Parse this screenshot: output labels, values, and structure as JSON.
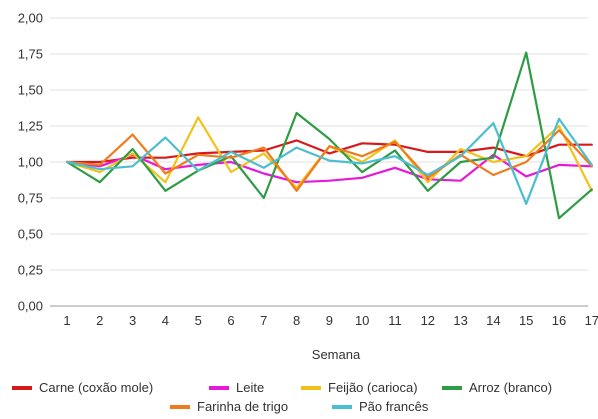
{
  "chart_data": {
    "type": "line",
    "title": "",
    "xlabel": "Semana",
    "ylabel": "",
    "x": [
      1,
      2,
      3,
      4,
      5,
      6,
      7,
      8,
      9,
      10,
      11,
      12,
      13,
      14,
      15,
      16,
      17
    ],
    "ylim": [
      0,
      2
    ],
    "yticks": [
      "0,00",
      "0,25",
      "0,50",
      "0,75",
      "1,00",
      "1,25",
      "1,50",
      "1,75",
      "2,00"
    ],
    "ytick_values": [
      0,
      0.25,
      0.5,
      0.75,
      1.0,
      1.25,
      1.5,
      1.75,
      2.0
    ],
    "grid": true,
    "legend_position": "bottom",
    "series": [
      {
        "name": "Carne (coxão mole)",
        "color": "#d7191c",
        "values": [
          1.0,
          1.0,
          1.03,
          1.03,
          1.06,
          1.07,
          1.08,
          1.15,
          1.06,
          1.13,
          1.12,
          1.07,
          1.07,
          1.1,
          1.04,
          1.12,
          1.12
        ]
      },
      {
        "name": "Leite",
        "color": "#e619d9",
        "values": [
          1.0,
          0.97,
          1.05,
          0.95,
          0.98,
          1.0,
          0.92,
          0.86,
          0.87,
          0.89,
          0.96,
          0.88,
          0.87,
          1.05,
          0.9,
          0.98,
          0.97
        ]
      },
      {
        "name": "Feijão (carioca)",
        "color": "#f2c21b",
        "values": [
          1.0,
          0.93,
          1.06,
          0.86,
          1.31,
          0.93,
          1.06,
          0.82,
          1.11,
          1.0,
          1.15,
          0.86,
          1.09,
          1.0,
          1.04,
          1.25,
          0.8
        ]
      },
      {
        "name": "Arroz (branco)",
        "color": "#2e9c44",
        "values": [
          1.0,
          0.86,
          1.09,
          0.8,
          0.94,
          1.04,
          0.75,
          1.34,
          1.16,
          0.93,
          1.08,
          0.8,
          1.0,
          1.03,
          1.76,
          0.61,
          0.81
        ]
      },
      {
        "name": "Farinha de trigo",
        "color": "#f07b1c",
        "values": [
          1.0,
          0.98,
          1.19,
          0.92,
          1.05,
          1.03,
          1.1,
          0.8,
          1.11,
          1.04,
          1.14,
          0.89,
          1.05,
          0.91,
          1.0,
          1.22,
          0.97
        ]
      },
      {
        "name": "Pão francês",
        "color": "#4bbfcf",
        "values": [
          1.0,
          0.95,
          0.97,
          1.17,
          0.94,
          1.07,
          0.96,
          1.1,
          1.01,
          0.99,
          1.04,
          0.91,
          1.04,
          1.27,
          0.71,
          1.3,
          0.98
        ]
      }
    ]
  }
}
